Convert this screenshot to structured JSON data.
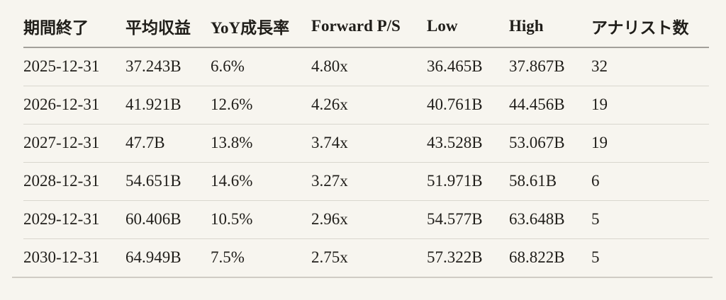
{
  "colors": {
    "background": "#f7f5ef",
    "text": "#201e1a",
    "header_rule": "#a3a09a",
    "row_rule": "#d9d6ce",
    "bottom_rule": "#d0ccc5"
  },
  "chart_data": {
    "type": "table",
    "columns": [
      "期間終了",
      "平均収益",
      "YoY成長率",
      "Forward P/S",
      "Low",
      "High",
      "アナリスト数"
    ],
    "rows": [
      [
        "2025-12-31",
        "37.243B",
        "6.6%",
        "4.80x",
        "36.465B",
        "37.867B",
        "32"
      ],
      [
        "2026-12-31",
        "41.921B",
        "12.6%",
        "4.26x",
        "40.761B",
        "44.456B",
        "19"
      ],
      [
        "2027-12-31",
        "47.7B",
        "13.8%",
        "3.74x",
        "43.528B",
        "53.067B",
        "19"
      ],
      [
        "2028-12-31",
        "54.651B",
        "14.6%",
        "3.27x",
        "51.971B",
        "58.61B",
        "6"
      ],
      [
        "2029-12-31",
        "60.406B",
        "10.5%",
        "2.96x",
        "54.577B",
        "63.648B",
        "5"
      ],
      [
        "2030-12-31",
        "64.949B",
        "7.5%",
        "2.75x",
        "57.322B",
        "68.822B",
        "5"
      ]
    ]
  }
}
